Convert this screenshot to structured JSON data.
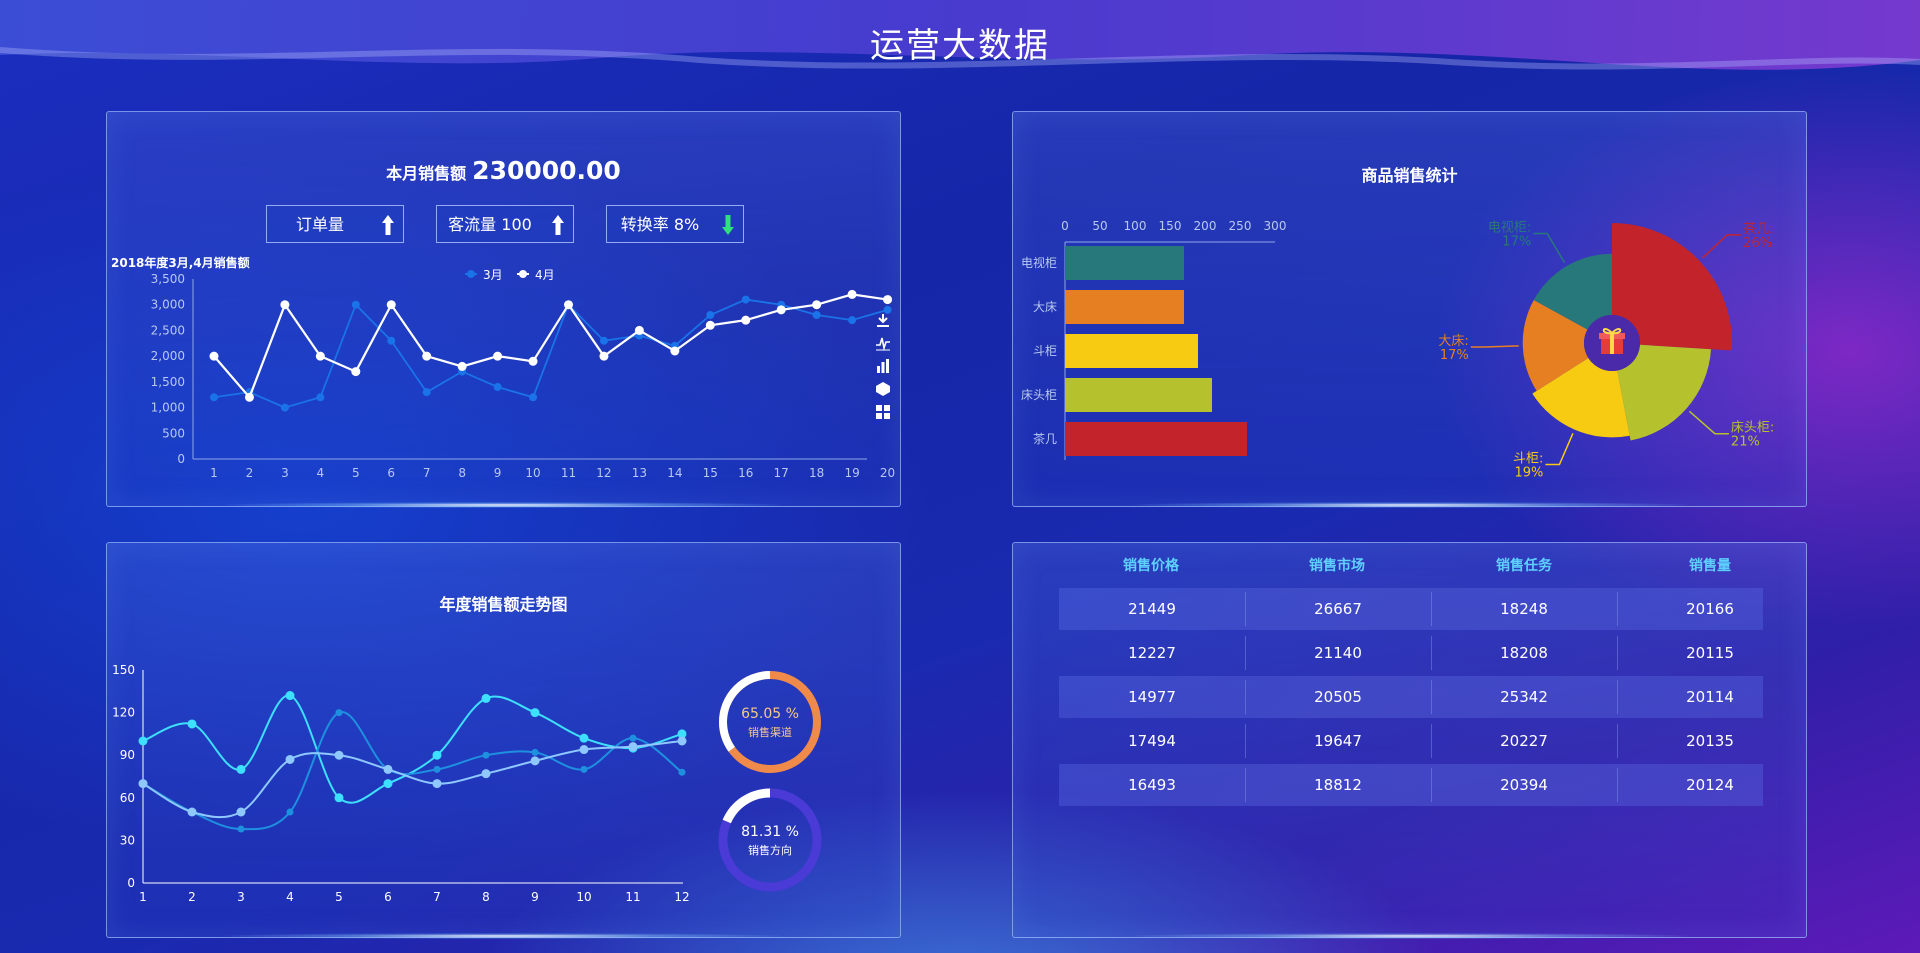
{
  "page": {
    "title": "运营大数据"
  },
  "monthly": {
    "sales_label": "本月销售额",
    "sales_value": "230000.00",
    "kpis": [
      {
        "label": "订单量",
        "arrow": "white-up-arrow-icon"
      },
      {
        "label": "客流量 100",
        "arrow": "white-up-arrow-icon"
      },
      {
        "label": "转换率 8%",
        "arrow": "green-arrow-icon"
      }
    ],
    "subtitle": "2018年度3月,4月销售额"
  },
  "toolbox": [
    "download-icon",
    "line-chart-icon",
    "bar-chart-icon",
    "stack-icon",
    "tiled-icon"
  ],
  "product_panel": {
    "title": "商品销售统计"
  },
  "yearly_panel": {
    "title": "年度销售额走势图"
  },
  "gauges": [
    {
      "value": 65.05,
      "text": "65.05 %",
      "label": "销售渠道",
      "color": "#f08a4b"
    },
    {
      "value": 81.31,
      "text": "81.31 %",
      "label": "销售方向",
      "color": "#4a3ad6"
    }
  ],
  "table": {
    "headers": [
      "销售价格",
      "销售市场",
      "销售任务",
      "销售量"
    ],
    "rows": [
      [
        "21449",
        "26667",
        "18248",
        "20166"
      ],
      [
        "12227",
        "21140",
        "18208",
        "20115"
      ],
      [
        "14977",
        "20505",
        "25342",
        "20114"
      ],
      [
        "17494",
        "19647",
        "20227",
        "20135"
      ],
      [
        "16493",
        "18812",
        "20394",
        "20124"
      ]
    ]
  },
  "colors": {
    "accent": "#5ed2ff",
    "march": "#1a73e8",
    "april": "#ffffff"
  },
  "chart_data": [
    {
      "type": "line",
      "title": "2018年度3月,4月销售额",
      "x": [
        1,
        2,
        3,
        4,
        5,
        6,
        7,
        8,
        9,
        10,
        11,
        12,
        13,
        14,
        15,
        16,
        17,
        18,
        19,
        20
      ],
      "ylim": [
        0,
        3500
      ],
      "yticks": [
        "0",
        "500",
        "1,000",
        "1,500",
        "2,000",
        "2,500",
        "3,000",
        "3,500"
      ],
      "legend": "top-center",
      "series": [
        {
          "name": "3月",
          "color": "#1a73e8",
          "values": [
            1200,
            1300,
            1000,
            1200,
            3000,
            2300,
            1300,
            1700,
            1400,
            1200,
            3000,
            2300,
            2400,
            2200,
            2800,
            3100,
            3000,
            2800,
            2700,
            2900
          ]
        },
        {
          "name": "4月",
          "color": "#ffffff",
          "values": [
            2000,
            1200,
            3000,
            2000,
            1700,
            3000,
            2000,
            1800,
            2000,
            1900,
            3000,
            2000,
            2500,
            2100,
            2600,
            2700,
            2900,
            3000,
            3200,
            3100
          ]
        }
      ]
    },
    {
      "type": "bar",
      "orientation": "horizontal",
      "categories": [
        "电视柜",
        "大床",
        "斗柜",
        "床头柜",
        "茶几"
      ],
      "values": [
        170,
        170,
        190,
        210,
        260
      ],
      "colors": [
        "#26787a",
        "#e57f22",
        "#f7cb12",
        "#b6c22d",
        "#c3242b"
      ],
      "xlim": [
        0,
        300
      ],
      "xticks": [
        "0",
        "50",
        "100",
        "150",
        "200",
        "250",
        "300"
      ]
    },
    {
      "type": "pie",
      "rose": true,
      "center_icon": "gift-icon",
      "slices": [
        {
          "label": "茶几:",
          "percent": "26%",
          "value": 26,
          "color": "#c3242b"
        },
        {
          "label": "床头柜:",
          "percent": "21%",
          "value": 21,
          "color": "#b6c22d"
        },
        {
          "label": "斗柜:",
          "percent": "19%",
          "value": 19,
          "color": "#f7cb12"
        },
        {
          "label": "大床:",
          "percent": "17%",
          "value": 17,
          "color": "#e57f22"
        },
        {
          "label": "电视柜:",
          "percent": "17%",
          "value": 17,
          "color": "#26787a"
        }
      ]
    },
    {
      "type": "line",
      "smooth": true,
      "title": "年度销售额走势图",
      "x": [
        1,
        2,
        3,
        4,
        5,
        6,
        7,
        8,
        9,
        10,
        11,
        12
      ],
      "ylim": [
        0,
        150
      ],
      "yticks": [
        "0",
        "30",
        "60",
        "90",
        "120",
        "150"
      ],
      "series": [
        {
          "color": "#3ee0ff",
          "values": [
            100,
            112,
            80,
            132,
            60,
            70,
            90,
            130,
            120,
            102,
            95,
            105
          ]
        },
        {
          "color": "#1e90e0",
          "values": [
            70,
            50,
            38,
            50,
            120,
            80,
            80,
            90,
            92,
            80,
            102,
            78
          ]
        },
        {
          "color": "#8ec8ff",
          "values": [
            70,
            50,
            50,
            87,
            90,
            80,
            70,
            77,
            86,
            94,
            96,
            100
          ]
        }
      ]
    }
  ]
}
